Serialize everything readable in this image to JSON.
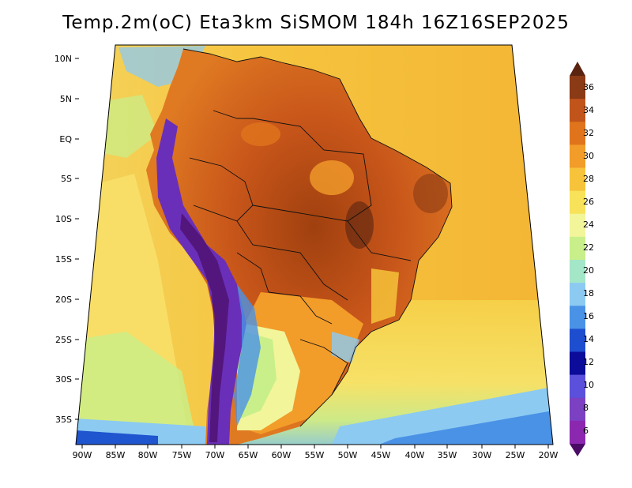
{
  "title": "Temp.2m(oC) Eta3km SiSMOM 184h 16Z16SEP2025",
  "lat_labels": [
    "10N",
    "5N",
    "EQ",
    "5S",
    "10S",
    "15S",
    "20S",
    "25S",
    "30S",
    "35S"
  ],
  "lon_labels": [
    "90W",
    "85W",
    "80W",
    "75W",
    "70W",
    "65W",
    "60W",
    "55W",
    "50W",
    "45W",
    "40W",
    "35W",
    "30W",
    "25W",
    "20W"
  ],
  "colorbar": {
    "labels": [
      "36",
      "34",
      "32",
      "30",
      "28",
      "26",
      "24",
      "22",
      "20",
      "18",
      "16",
      "14",
      "12",
      "10",
      "8",
      "6"
    ],
    "colors": [
      "#5a2410",
      "#8a3a14",
      "#c0541a",
      "#e0741c",
      "#f29c2a",
      "#f6c33a",
      "#f7e25a",
      "#f2f59a",
      "#c8ef8a",
      "#a4e6c8",
      "#8ccaf2",
      "#4a92e6",
      "#1e4ed0",
      "#0c0c9a",
      "#5a50dc",
      "#7c40c2",
      "#8c28b0",
      "#4a0c64"
    ]
  },
  "fields": {
    "ocean_warm": "#f5c84a",
    "ocean_mid": "#f8e06a",
    "ocean_cool": "#c8ef8a",
    "land_hot": "#d5631d",
    "land_very_hot": "#9a3c12",
    "land_warm": "#ef8e27",
    "andes_cold": "#6a2fb8",
    "south_cool": "#a6e3c8",
    "coast_cold": "#1f55cf"
  }
}
